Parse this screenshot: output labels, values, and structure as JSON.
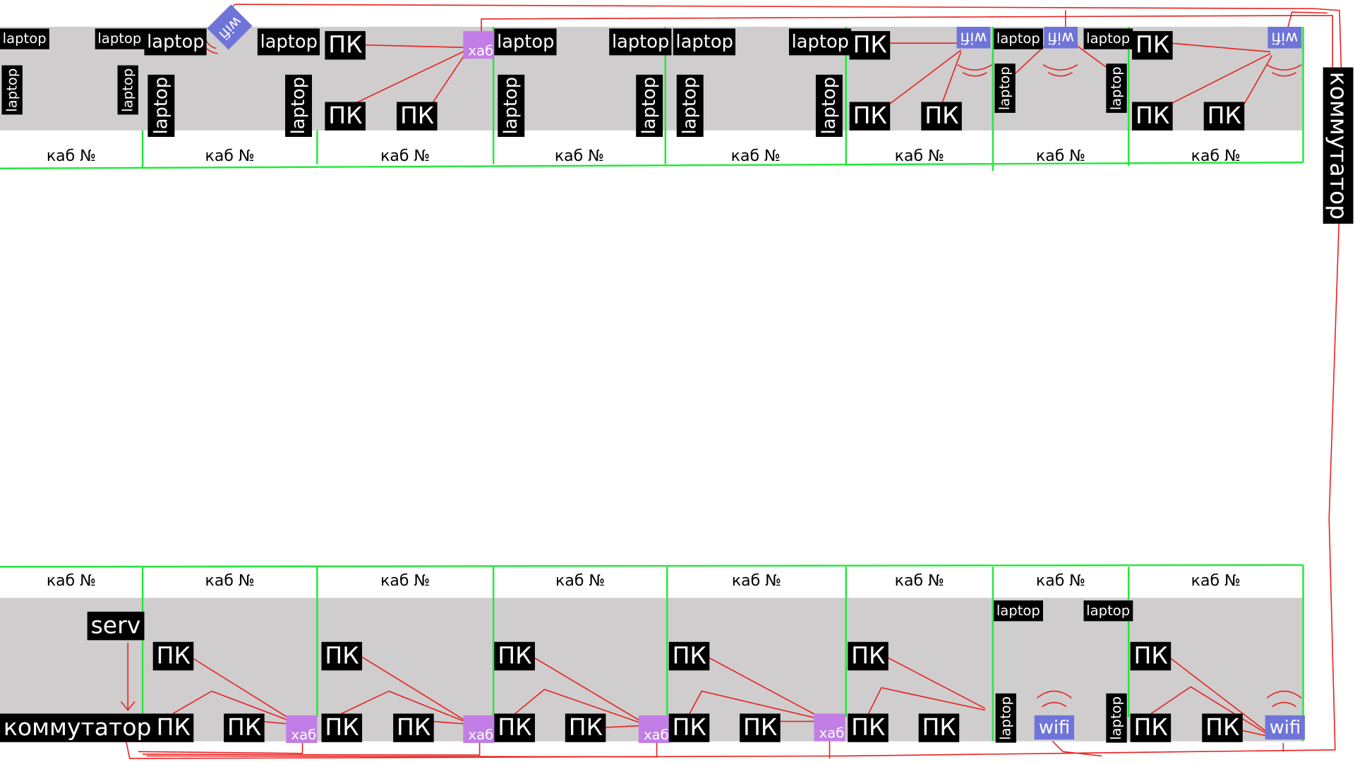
{
  "top_rooms": [
    {
      "label": "каб №",
      "devices": [
        "laptop",
        "laptop",
        "laptop",
        "laptop"
      ]
    },
    {
      "label": "каб №",
      "devices": [
        "laptop",
        "wifi",
        "laptop",
        "laptop",
        "laptop"
      ]
    },
    {
      "label": "каб №",
      "devices": [
        "ПК",
        "хаб",
        "ПК",
        "ПК"
      ]
    },
    {
      "label": "каб №",
      "devices": [
        "laptop",
        "laptop",
        "laptop",
        "laptop"
      ]
    },
    {
      "label": "каб №",
      "devices": [
        "laptop",
        "laptop",
        "laptop",
        "laptop"
      ]
    },
    {
      "label": "каб №",
      "devices": [
        "ПК",
        "wifi",
        "ПК",
        "ПК"
      ]
    },
    {
      "label": "каб №",
      "devices": [
        "laptop",
        "wifi",
        "laptop",
        "laptop",
        "laptop"
      ]
    },
    {
      "label": "каб №",
      "devices": [
        "ПК",
        "wifi",
        "ПК",
        "ПК"
      ]
    }
  ],
  "bottom_rooms": [
    {
      "label": "каб №",
      "devices": [
        "serv",
        "коммутатор"
      ]
    },
    {
      "label": "каб №",
      "devices": [
        "ПК",
        "ПК",
        "ПК",
        "хаб"
      ]
    },
    {
      "label": "каб №",
      "devices": [
        "ПК",
        "ПК",
        "ПК",
        "хаб"
      ]
    },
    {
      "label": "каб №",
      "devices": [
        "ПК",
        "ПК",
        "ПК",
        "хаб"
      ]
    },
    {
      "label": "каб №",
      "devices": [
        "ПК",
        "ПК",
        "ПК",
        "хаб"
      ]
    },
    {
      "label": "каб №",
      "devices": [
        "ПК",
        "ПК",
        "ПК"
      ]
    },
    {
      "label": "каб №",
      "devices": [
        "laptop",
        "laptop",
        "laptop",
        "wifi",
        "laptop"
      ]
    },
    {
      "label": "каб №",
      "devices": [
        "ПК",
        "ПК",
        "ПК",
        "wifi"
      ]
    }
  ],
  "switch": "коммутатор"
}
